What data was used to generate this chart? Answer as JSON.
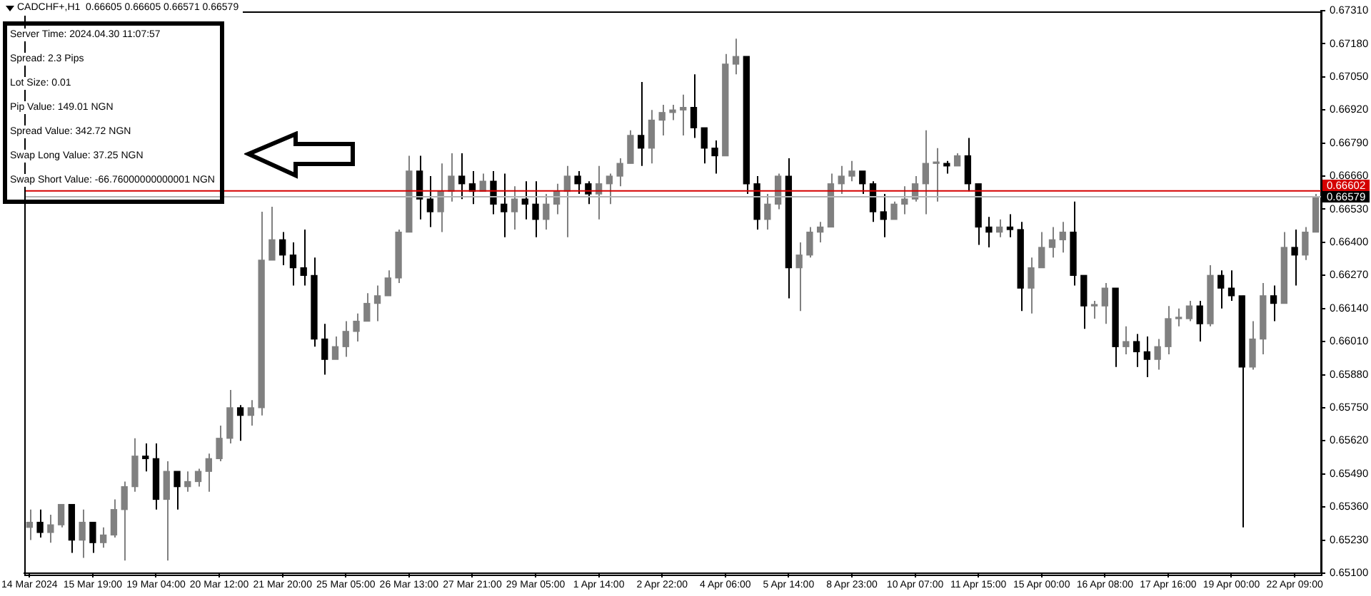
{
  "chart_data": {
    "type": "candlestick",
    "title": "CADCHF+,H1  0.66605 0.66605 0.66571 0.66579",
    "categories": [
      "14 Mar 2024",
      null,
      null,
      null,
      null,
      null,
      "15 Mar 19:00",
      null,
      null,
      null,
      null,
      null,
      "19 Mar 04:00",
      null,
      null,
      null,
      null,
      null,
      "20 Mar 12:00",
      null,
      null,
      null,
      null,
      null,
      "21 Mar 20:00",
      null,
      null,
      null,
      null,
      null,
      "25 Mar 05:00",
      null,
      null,
      null,
      null,
      null,
      "26 Mar 13:00",
      null,
      null,
      null,
      null,
      null,
      "27 Mar 21:00",
      null,
      null,
      null,
      null,
      null,
      "29 Mar 05:00",
      null,
      null,
      null,
      null,
      null,
      "1 Apr 14:00",
      null,
      null,
      null,
      null,
      null,
      "2 Apr 22:00",
      null,
      null,
      null,
      null,
      null,
      "4 Apr 06:00",
      null,
      null,
      null,
      null,
      null,
      "5 Apr 14:00",
      null,
      null,
      null,
      null,
      null,
      "8 Apr 23:00",
      null,
      null,
      null,
      null,
      null,
      "10 Apr 07:00",
      null,
      null,
      null,
      null,
      null,
      "11 Apr 15:00",
      null,
      null,
      null,
      null,
      null,
      "15 Apr 00:00",
      null,
      null,
      null,
      null,
      null,
      "16 Apr 08:00",
      null,
      null,
      null,
      null,
      null,
      "17 Apr 16:00",
      null,
      null,
      null,
      null,
      null,
      "19 Apr 00:00",
      null,
      null,
      null,
      null,
      null,
      "22 Apr 09:00",
      null,
      null
    ],
    "ohlc": [
      [
        0.6528,
        0.6535,
        0.6523,
        0.653
      ],
      [
        0.653,
        0.6535,
        0.6524,
        0.6526
      ],
      [
        0.6526,
        0.6533,
        0.6522,
        0.6529
      ],
      [
        0.6529,
        0.6537,
        0.6528,
        0.6537
      ],
      [
        0.6537,
        0.6537,
        0.6518,
        0.6523
      ],
      [
        0.6523,
        0.6535,
        0.6516,
        0.653
      ],
      [
        0.653,
        0.653,
        0.6518,
        0.6522
      ],
      [
        0.6522,
        0.6528,
        0.652,
        0.6525
      ],
      [
        0.6525,
        0.6539,
        0.6524,
        0.6535
      ],
      [
        0.6535,
        0.6546,
        0.6515,
        0.6544
      ],
      [
        0.6544,
        0.6563,
        0.6542,
        0.6556
      ],
      [
        0.6556,
        0.6561,
        0.655,
        0.6555
      ],
      [
        0.6555,
        0.6561,
        0.6535,
        0.6539
      ],
      [
        0.6539,
        0.6554,
        0.6515,
        0.655
      ],
      [
        0.655,
        0.655,
        0.6535,
        0.6544
      ],
      [
        0.6544,
        0.655,
        0.6542,
        0.6546
      ],
      [
        0.6546,
        0.6551,
        0.6544,
        0.655
      ],
      [
        0.655,
        0.6557,
        0.6542,
        0.6555
      ],
      [
        0.6555,
        0.6568,
        0.6554,
        0.6563
      ],
      [
        0.6563,
        0.6582,
        0.6561,
        0.6575
      ],
      [
        0.6575,
        0.6576,
        0.6562,
        0.6572
      ],
      [
        0.6572,
        0.6578,
        0.6568,
        0.6575
      ],
      [
        0.6575,
        0.6652,
        0.6572,
        0.6633
      ],
      [
        0.6633,
        0.6654,
        0.6633,
        0.6641
      ],
      [
        0.6641,
        0.6644,
        0.6631,
        0.6635
      ],
      [
        0.6635,
        0.664,
        0.6623,
        0.663
      ],
      [
        0.663,
        0.6645,
        0.6623,
        0.6627
      ],
      [
        0.6627,
        0.6634,
        0.6599,
        0.6602
      ],
      [
        0.6602,
        0.6608,
        0.6588,
        0.6594
      ],
      [
        0.6594,
        0.6603,
        0.6594,
        0.6599
      ],
      [
        0.6599,
        0.6609,
        0.6595,
        0.6605
      ],
      [
        0.6605,
        0.6612,
        0.6601,
        0.6609
      ],
      [
        0.6609,
        0.662,
        0.6609,
        0.6616
      ],
      [
        0.6616,
        0.6623,
        0.6609,
        0.6619
      ],
      [
        0.6619,
        0.6629,
        0.6619,
        0.6626
      ],
      [
        0.6626,
        0.6645,
        0.6624,
        0.6644
      ],
      [
        0.6644,
        0.6674,
        0.6644,
        0.6668
      ],
      [
        0.6668,
        0.6674,
        0.6649,
        0.6657
      ],
      [
        0.6657,
        0.6666,
        0.6646,
        0.6652
      ],
      [
        0.6652,
        0.6671,
        0.6644,
        0.666
      ],
      [
        0.666,
        0.6675,
        0.6656,
        0.6666
      ],
      [
        0.6666,
        0.6675,
        0.6657,
        0.6663
      ],
      [
        0.6663,
        0.6668,
        0.6655,
        0.666
      ],
      [
        0.666,
        0.6667,
        0.666,
        0.6664
      ],
      [
        0.6664,
        0.6668,
        0.6651,
        0.6655
      ],
      [
        0.6655,
        0.6667,
        0.6642,
        0.6652
      ],
      [
        0.6652,
        0.6662,
        0.6645,
        0.6657
      ],
      [
        0.6657,
        0.6664,
        0.6649,
        0.6655
      ],
      [
        0.6655,
        0.6664,
        0.6642,
        0.6649
      ],
      [
        0.6649,
        0.6659,
        0.6645,
        0.6655
      ],
      [
        0.6655,
        0.6663,
        0.6651,
        0.666
      ],
      [
        0.666,
        0.667,
        0.6642,
        0.6666
      ],
      [
        0.6666,
        0.6668,
        0.6659,
        0.6663
      ],
      [
        0.6663,
        0.6664,
        0.6655,
        0.6659
      ],
      [
        0.6659,
        0.667,
        0.6649,
        0.6663
      ],
      [
        0.6663,
        0.6667,
        0.6655,
        0.6666
      ],
      [
        0.6666,
        0.6673,
        0.6662,
        0.6671
      ],
      [
        0.6671,
        0.6684,
        0.6671,
        0.6682
      ],
      [
        0.6682,
        0.6703,
        0.667,
        0.6677
      ],
      [
        0.6677,
        0.6692,
        0.6671,
        0.6688
      ],
      [
        0.6688,
        0.6694,
        0.6682,
        0.6691
      ],
      [
        0.6691,
        0.6694,
        0.6688,
        0.6692
      ],
      [
        0.6692,
        0.6698,
        0.6682,
        0.6693
      ],
      [
        0.6693,
        0.6706,
        0.6681,
        0.6685
      ],
      [
        0.6685,
        0.6685,
        0.6671,
        0.6677
      ],
      [
        0.6677,
        0.668,
        0.6667,
        0.6674
      ],
      [
        0.6674,
        0.6714,
        0.6674,
        0.671
      ],
      [
        0.671,
        0.672,
        0.6706,
        0.6713
      ],
      [
        0.6713,
        0.6713,
        0.6659,
        0.6663
      ],
      [
        0.6663,
        0.6666,
        0.6645,
        0.6649
      ],
      [
        0.6649,
        0.6659,
        0.6645,
        0.6655
      ],
      [
        0.6655,
        0.6667,
        0.6653,
        0.6666
      ],
      [
        0.6666,
        0.6673,
        0.6618,
        0.663
      ],
      [
        0.663,
        0.664,
        0.6613,
        0.6635
      ],
      [
        0.6635,
        0.6646,
        0.6634,
        0.6644
      ],
      [
        0.6644,
        0.6648,
        0.664,
        0.6646
      ],
      [
        0.6646,
        0.6667,
        0.6646,
        0.6663
      ],
      [
        0.6663,
        0.667,
        0.6659,
        0.6666
      ],
      [
        0.6666,
        0.6672,
        0.6664,
        0.6668
      ],
      [
        0.6668,
        0.6668,
        0.6659,
        0.6663
      ],
      [
        0.6663,
        0.6664,
        0.6648,
        0.6652
      ],
      [
        0.6652,
        0.6659,
        0.6642,
        0.6649
      ],
      [
        0.6649,
        0.6656,
        0.6649,
        0.6655
      ],
      [
        0.6655,
        0.6662,
        0.6651,
        0.6657
      ],
      [
        0.6657,
        0.6666,
        0.6656,
        0.6663
      ],
      [
        0.6663,
        0.6684,
        0.6651,
        0.6671
      ],
      [
        0.6671,
        0.6677,
        0.6656,
        0.6671
      ],
      [
        0.6671,
        0.6672,
        0.6667,
        0.667
      ],
      [
        0.667,
        0.6675,
        0.667,
        0.6674
      ],
      [
        0.6674,
        0.6681,
        0.666,
        0.6663
      ],
      [
        0.6663,
        0.6663,
        0.6639,
        0.6646
      ],
      [
        0.6646,
        0.665,
        0.6638,
        0.6644
      ],
      [
        0.6644,
        0.6649,
        0.6642,
        0.6646
      ],
      [
        0.6646,
        0.6651,
        0.6642,
        0.6645
      ],
      [
        0.6645,
        0.6648,
        0.6613,
        0.6622
      ],
      [
        0.6622,
        0.6634,
        0.6612,
        0.663
      ],
      [
        0.663,
        0.6644,
        0.663,
        0.6638
      ],
      [
        0.6638,
        0.6646,
        0.6634,
        0.6641
      ],
      [
        0.6641,
        0.6648,
        0.6636,
        0.6644
      ],
      [
        0.6644,
        0.6656,
        0.6623,
        0.6627
      ],
      [
        0.6627,
        0.6627,
        0.6606,
        0.6615
      ],
      [
        0.6615,
        0.6617,
        0.661,
        0.6615
      ],
      [
        0.6615,
        0.6624,
        0.6608,
        0.6622
      ],
      [
        0.6622,
        0.6622,
        0.6591,
        0.6599
      ],
      [
        0.6599,
        0.6607,
        0.6596,
        0.6601
      ],
      [
        0.6601,
        0.6604,
        0.6591,
        0.6597
      ],
      [
        0.6597,
        0.6603,
        0.6587,
        0.6594
      ],
      [
        0.6594,
        0.6602,
        0.659,
        0.6599
      ],
      [
        0.6599,
        0.6615,
        0.6596,
        0.661
      ],
      [
        0.661,
        0.6614,
        0.6607,
        0.661
      ],
      [
        0.661,
        0.6617,
        0.6609,
        0.6615
      ],
      [
        0.6615,
        0.6617,
        0.6601,
        0.6608
      ],
      [
        0.6608,
        0.6631,
        0.6607,
        0.6627
      ],
      [
        0.6627,
        0.6629,
        0.6614,
        0.6622
      ],
      [
        0.6622,
        0.6629,
        0.6617,
        0.6619
      ],
      [
        0.6619,
        0.6619,
        0.6528,
        0.6591
      ],
      [
        0.6591,
        0.6609,
        0.659,
        0.6602
      ],
      [
        0.6602,
        0.6624,
        0.6596,
        0.6619
      ],
      [
        0.6619,
        0.6623,
        0.6609,
        0.6616
      ],
      [
        0.6616,
        0.6644,
        0.6616,
        0.6638
      ],
      [
        0.6638,
        0.6645,
        0.6623,
        0.6635
      ],
      [
        0.6635,
        0.6646,
        0.6633,
        0.6644
      ],
      [
        0.6644,
        0.6659,
        0.6644,
        0.6658
      ]
    ],
    "colors": [
      "#808080",
      "#000000",
      "#808080",
      "#808080",
      "#000000",
      "#808080",
      "#000000",
      "#808080",
      "#808080",
      "#808080",
      "#808080",
      "#000000",
      "#000000",
      "#808080",
      "#000000",
      "#808080",
      "#808080",
      "#808080",
      "#808080",
      "#808080",
      "#000000",
      "#808080",
      "#808080",
      "#808080",
      "#000000",
      "#000000",
      "#000000",
      "#000000",
      "#000000",
      "#808080",
      "#808080",
      "#808080",
      "#808080",
      "#808080",
      "#808080",
      "#808080",
      "#808080",
      "#000000",
      "#000000",
      "#808080",
      "#808080",
      "#000000",
      "#000000",
      "#808080",
      "#000000",
      "#000000",
      "#808080",
      "#000000",
      "#000000",
      "#808080",
      "#808080",
      "#808080",
      "#000000",
      "#000000",
      "#808080",
      "#808080",
      "#808080",
      "#808080",
      "#000000",
      "#808080",
      "#808080",
      "#808080",
      "#808080",
      "#000000",
      "#000000",
      "#000000",
      "#808080",
      "#808080",
      "#000000",
      "#000000",
      "#808080",
      "#808080",
      "#000000",
      "#808080",
      "#808080",
      "#808080",
      "#808080",
      "#808080",
      "#808080",
      "#000000",
      "#000000",
      "#000000",
      "#808080",
      "#808080",
      "#808080",
      "#808080",
      "#808080",
      "#000000",
      "#808080",
      "#000000",
      "#000000",
      "#000000",
      "#808080",
      "#000000",
      "#000000",
      "#808080",
      "#808080",
      "#808080",
      "#808080",
      "#000000",
      "#000000",
      "#808080",
      "#808080",
      "#000000",
      "#808080",
      "#000000",
      "#000000",
      "#808080",
      "#808080",
      "#808080",
      "#808080",
      "#000000",
      "#808080",
      "#000000",
      "#000000",
      "#000000",
      "#808080",
      "#808080",
      "#000000",
      "#808080",
      "#000000",
      "#808080",
      "#808080"
    ],
    "ylim": [
      0.651,
      0.6731
    ],
    "yticks": [
      {
        "value": 0.651,
        "label": "0.65100"
      },
      {
        "value": 0.6523,
        "label": "0.65230"
      },
      {
        "value": 0.6536,
        "label": "0.65360"
      },
      {
        "value": 0.6549,
        "label": "0.65490"
      },
      {
        "value": 0.6562,
        "label": "0.65620"
      },
      {
        "value": 0.6575,
        "label": "0.65750"
      },
      {
        "value": 0.6588,
        "label": "0.65880"
      },
      {
        "value": 0.6601,
        "label": "0.66010"
      },
      {
        "value": 0.6614,
        "label": "0.66140"
      },
      {
        "value": 0.6627,
        "label": "0.66270"
      },
      {
        "value": 0.664,
        "label": "0.66400"
      },
      {
        "value": 0.6653,
        "label": "0.66530"
      },
      {
        "value": 0.6666,
        "label": "0.66660"
      },
      {
        "value": 0.6679,
        "label": "0.66790"
      },
      {
        "value": 0.6692,
        "label": "0.66920"
      },
      {
        "value": 0.6705,
        "label": "0.67050"
      },
      {
        "value": 0.6718,
        "label": "0.67180"
      },
      {
        "value": 0.6731,
        "label": "0.67310"
      }
    ],
    "ref_lines": [
      {
        "axis": "y",
        "value": 0.66602,
        "label": "0.66602",
        "color": "#d40000"
      },
      {
        "axis": "y",
        "value": 0.66579,
        "label": "0.66579",
        "color": "#b4b4b4"
      }
    ],
    "annotations": [
      "Server Time: 2024.04.30 11:07:57",
      "Spread: 2.3 Pips",
      "Lot Size: 0.01",
      "Pip Value: 149.01 NGN",
      "Spread Value: 342.72 NGN",
      "Swap Long Value: 37.25 NGN",
      "Swap Short Value: -66.76000000000001 NGN"
    ]
  }
}
